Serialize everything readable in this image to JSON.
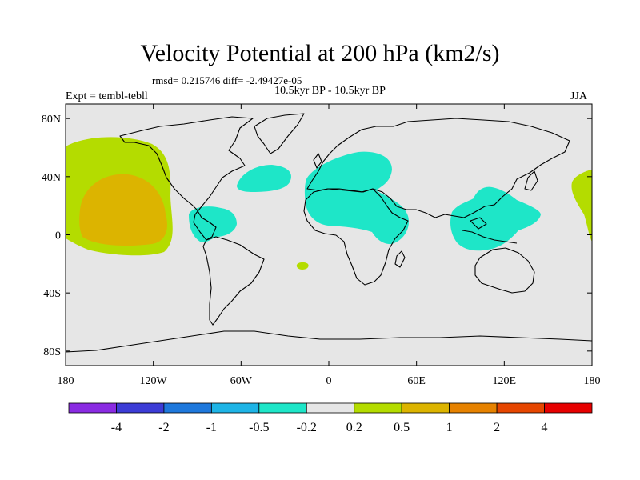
{
  "title": "Velocity Potential at 200 hPa (km2/s)",
  "stats_text": "rmsd= 0.215746 diff= -2.49427e-05",
  "subtitle": "10.5kyr BP - 10.5kyr BP",
  "left_label": "Expt = tembl-tebll",
  "right_label": "JJA",
  "map": {
    "projection": "cylindrical-equidistant",
    "background_color": "#e6e6e6",
    "coastline_color": "#000000",
    "lon_ticks": [
      "180",
      "120W",
      "60W",
      "0",
      "60E",
      "120E",
      "180"
    ],
    "lat_ticks": [
      "80N",
      "40N",
      "0",
      "40S",
      "80S"
    ]
  },
  "colorbar": {
    "colors": [
      "#8a2be2",
      "#3c3cd6",
      "#1e78dc",
      "#1eb4e6",
      "#1ee6c8",
      "#e6e6e6",
      "#b4dc00",
      "#dcb400",
      "#e68200",
      "#e64600",
      "#e60000"
    ],
    "labels": [
      "-4",
      "-2",
      "-1",
      "-0.5",
      "-0.2",
      "0.2",
      "0.5",
      "1",
      "2",
      "4"
    ]
  },
  "regions": [
    {
      "name": "north-pacific-positive",
      "level": "0.2 to 0.5",
      "color": "#b4dc00"
    },
    {
      "name": "north-pacific-core",
      "level": "0.5 to 1",
      "color": "#dcb400"
    },
    {
      "name": "caribbean-negative",
      "level": "-0.5 to -0.2",
      "color": "#1ee6c8"
    },
    {
      "name": "north-atlantic-negative",
      "level": "-0.5 to -0.2",
      "color": "#1ee6c8"
    },
    {
      "name": "africa-eurasia-negative",
      "level": "-0.5 to -0.2",
      "color": "#1ee6c8"
    },
    {
      "name": "maritime-continent-negative",
      "level": "-0.5 to -0.2",
      "color": "#1ee6c8"
    },
    {
      "name": "south-atlantic-positive",
      "level": "0.2 to 0.5",
      "color": "#b4dc00"
    },
    {
      "name": "east-pacific-edge-positive",
      "level": "0.2 to 0.5",
      "color": "#b4dc00"
    }
  ]
}
